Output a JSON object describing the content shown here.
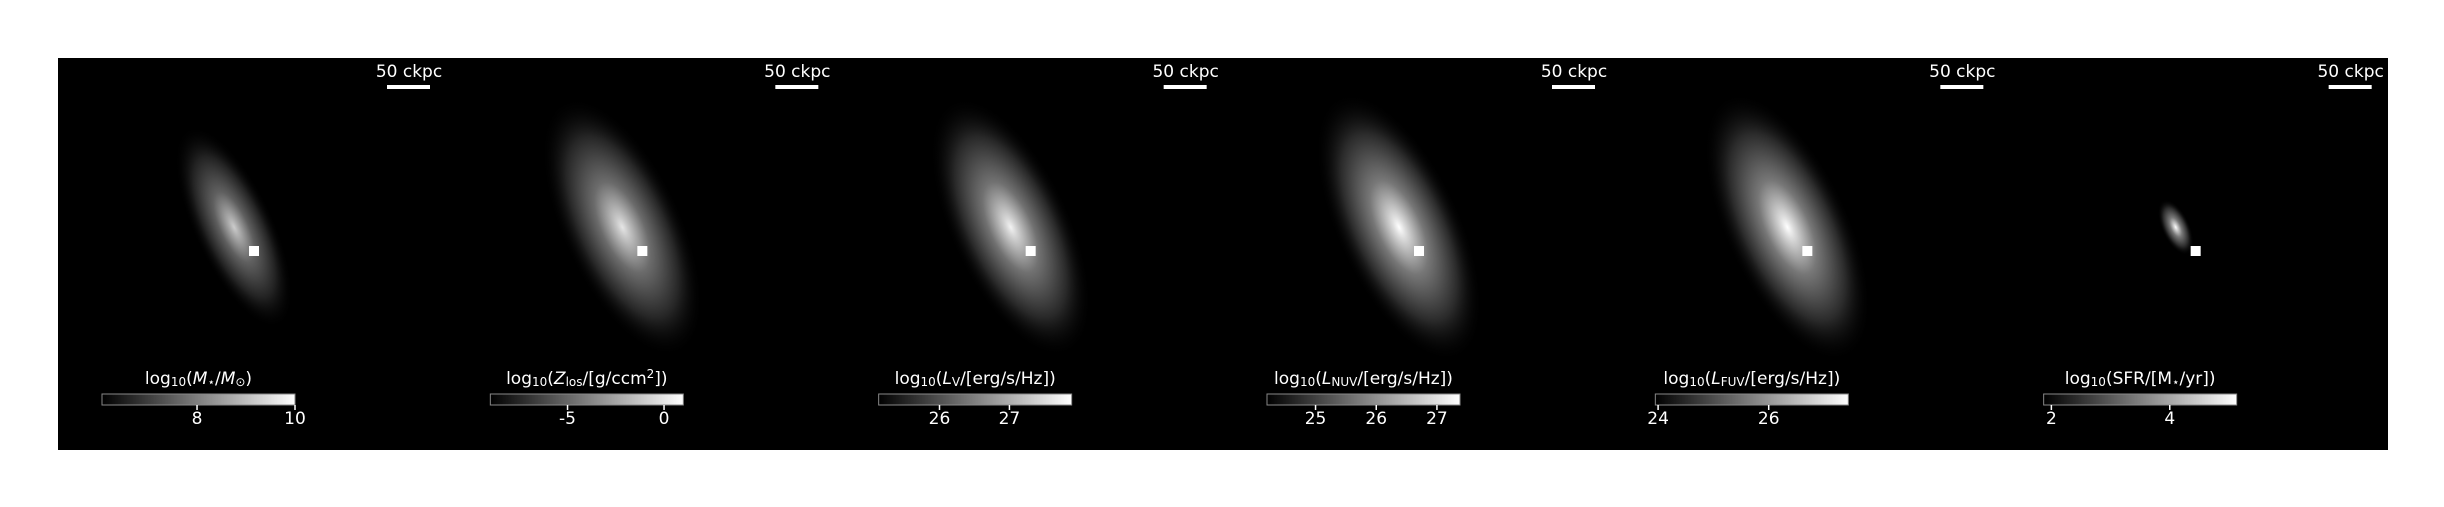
{
  "panels": [
    {
      "scalebar": "50 ckpc",
      "colorbar": {
        "label": [
          {
            "text": "log"
          },
          {
            "text": "10",
            "sub": true
          },
          {
            "text": "("
          },
          {
            "text": "M",
            "italic": true
          },
          {
            "text": "⋆",
            "sub": true
          },
          {
            "text": "/"
          },
          {
            "text": "M",
            "italic": true
          },
          {
            "text": "⊙",
            "sub": true
          },
          {
            "text": ")"
          }
        ],
        "lim": [
          6.06,
          10
        ],
        "ticks": [
          8,
          10
        ]
      }
    },
    {
      "scalebar": "50 ckpc",
      "colorbar": {
        "label": [
          {
            "text": "log"
          },
          {
            "text": "10",
            "sub": true
          },
          {
            "text": "("
          },
          {
            "text": "Z",
            "italic": true
          },
          {
            "text": "los",
            "sub": true
          },
          {
            "text": "/[g/ccm"
          },
          {
            "text": "2",
            "sup": true
          },
          {
            "text": "])"
          }
        ],
        "lim": [
          -9,
          1
        ],
        "ticks": [
          -5,
          0
        ]
      }
    },
    {
      "scalebar": "50 ckpc",
      "colorbar": {
        "label": [
          {
            "text": "log"
          },
          {
            "text": "10",
            "sub": true
          },
          {
            "text": "("
          },
          {
            "text": "L",
            "italic": true
          },
          {
            "text": "V",
            "sub": true
          },
          {
            "text": "/[erg/s/Hz])"
          }
        ],
        "lim": [
          25.13,
          27.89
        ],
        "ticks": [
          26,
          27
        ]
      }
    },
    {
      "scalebar": "50 ckpc",
      "colorbar": {
        "label": [
          {
            "text": "log"
          },
          {
            "text": "10",
            "sub": true
          },
          {
            "text": "("
          },
          {
            "text": "L",
            "italic": true
          },
          {
            "text": "NUV",
            "sub": true
          },
          {
            "text": "/[erg/s/Hz])"
          }
        ],
        "lim": [
          24.2,
          27.38
        ],
        "ticks": [
          25,
          26,
          27
        ]
      }
    },
    {
      "scalebar": "50 ckpc",
      "colorbar": {
        "label": [
          {
            "text": "log"
          },
          {
            "text": "10",
            "sub": true
          },
          {
            "text": "("
          },
          {
            "text": "L",
            "italic": true
          },
          {
            "text": "FUV",
            "sub": true
          },
          {
            "text": "/[erg/s/Hz])"
          }
        ],
        "lim": [
          23.95,
          27.44
        ],
        "ticks": [
          24,
          26
        ]
      }
    },
    {
      "scalebar": "50 ckpc",
      "colorbar": {
        "label": [
          {
            "text": "log"
          },
          {
            "text": "10",
            "sub": true
          },
          {
            "text": "(SFR/[M"
          },
          {
            "text": "⋆",
            "sub": true
          },
          {
            "text": "/yr])"
          }
        ],
        "lim": [
          1.87,
          5.13
        ],
        "ticks": [
          2,
          4
        ]
      }
    }
  ]
}
